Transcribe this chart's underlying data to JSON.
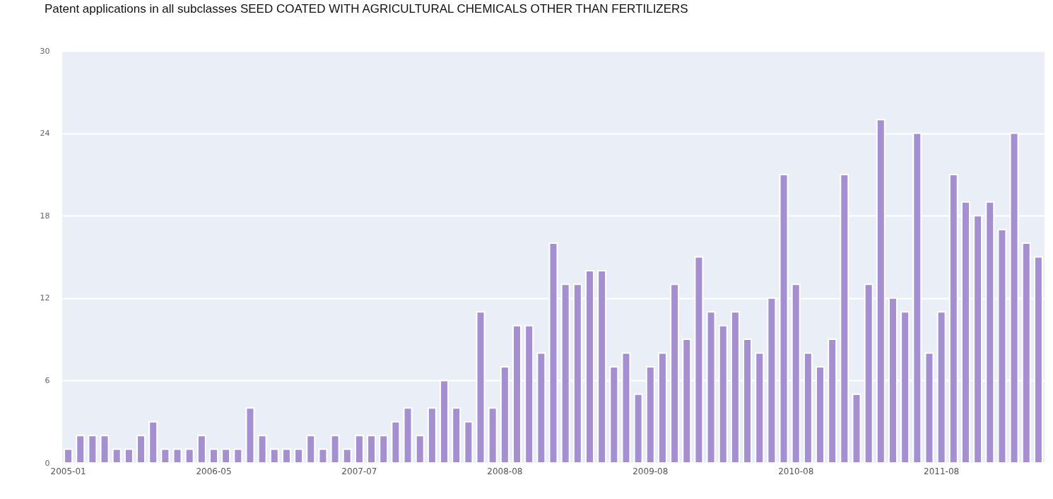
{
  "chart_data": {
    "type": "bar",
    "title": "Patent applications in all subclasses SEED COATED WITH AGRICULTURAL CHEMICALS OTHER THAN FERTILIZERS",
    "categories": [
      "2005-01",
      null,
      null,
      null,
      null,
      null,
      null,
      null,
      null,
      null,
      null,
      null,
      "2006-05",
      null,
      null,
      null,
      null,
      null,
      null,
      null,
      null,
      null,
      null,
      null,
      "2007-07",
      null,
      null,
      null,
      null,
      null,
      null,
      null,
      null,
      null,
      null,
      null,
      "2008-08",
      null,
      null,
      null,
      null,
      null,
      null,
      null,
      null,
      null,
      null,
      null,
      "2009-08",
      null,
      null,
      null,
      null,
      null,
      null,
      null,
      null,
      null,
      null,
      null,
      "2010-08",
      null,
      null,
      null,
      null,
      null,
      null,
      null,
      null,
      null,
      null,
      null,
      "2011-08",
      null,
      null,
      null,
      null,
      null,
      null,
      null,
      null
    ],
    "values": [
      1,
      2,
      2,
      2,
      1,
      1,
      2,
      3,
      1,
      1,
      1,
      2,
      1,
      1,
      1,
      4,
      2,
      1,
      1,
      1,
      2,
      1,
      2,
      1,
      2,
      2,
      2,
      3,
      4,
      2,
      4,
      6,
      4,
      3,
      11,
      4,
      7,
      10,
      10,
      8,
      16,
      13,
      13,
      14,
      14,
      7,
      8,
      5,
      7,
      8,
      13,
      9,
      15,
      11,
      10,
      11,
      9,
      8,
      12,
      21,
      13,
      8,
      7,
      9,
      21,
      5,
      13,
      25,
      12,
      11,
      24,
      8,
      11,
      21,
      19,
      18,
      19,
      17,
      24,
      16,
      15
    ],
    "color": "#a48fd2",
    "ylim": [
      0,
      30
    ],
    "yticks": [
      0,
      6,
      12,
      18,
      24,
      30
    ],
    "grid": "y"
  }
}
